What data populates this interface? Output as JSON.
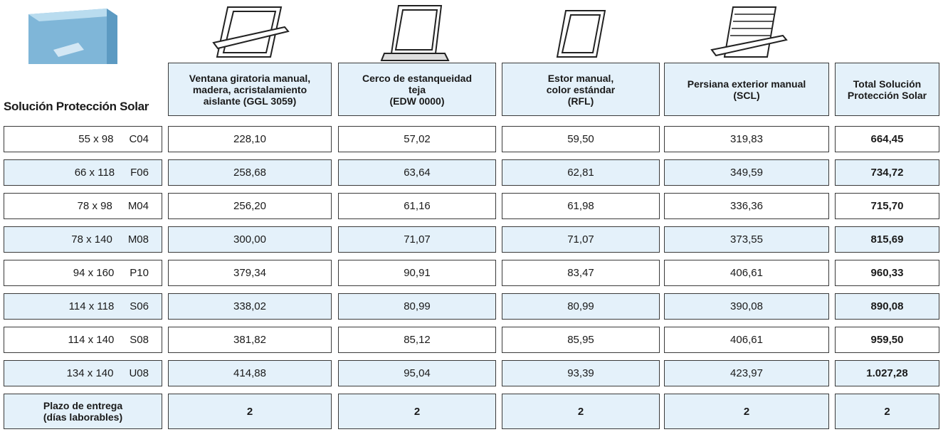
{
  "header": {
    "title": "Solución Protección Solar",
    "columns": [
      {
        "lines": [
          "Ventana giratoria manual,",
          "madera, acristalamiento",
          "aislante (GGL 3059)"
        ]
      },
      {
        "lines": [
          "Cerco de estanqueidad",
          "teja",
          "(EDW 0000)"
        ]
      },
      {
        "lines": [
          "Estor manual,",
          "color estándar",
          "(RFL)"
        ]
      },
      {
        "lines": [
          "Persiana exterior manual",
          "(SCL)"
        ]
      },
      {
        "lines": [
          "Total Solución",
          "Protección Solar"
        ]
      }
    ]
  },
  "table": {
    "rows": [
      {
        "size": "55 x 98",
        "code": "C04",
        "values": [
          "228,10",
          "57,02",
          "59,50",
          "319,83",
          "664,45"
        ]
      },
      {
        "size": "66 x 118",
        "code": "F06",
        "values": [
          "258,68",
          "63,64",
          "62,81",
          "349,59",
          "734,72"
        ]
      },
      {
        "size": "78 x 98",
        "code": "M04",
        "values": [
          "256,20",
          "61,16",
          "61,98",
          "336,36",
          "715,70"
        ]
      },
      {
        "size": "78 x 140",
        "code": "M08",
        "values": [
          "300,00",
          "71,07",
          "71,07",
          "373,55",
          "815,69"
        ]
      },
      {
        "size": "94 x 160",
        "code": "P10",
        "values": [
          "379,34",
          "90,91",
          "83,47",
          "406,61",
          "960,33"
        ]
      },
      {
        "size": "114 x 118",
        "code": "S06",
        "values": [
          "338,02",
          "80,99",
          "80,99",
          "390,08",
          "890,08"
        ]
      },
      {
        "size": "114 x 140",
        "code": "S08",
        "values": [
          "381,82",
          "85,12",
          "85,95",
          "406,61",
          "959,50"
        ]
      },
      {
        "size": "134 x 140",
        "code": "U08",
        "values": [
          "414,88",
          "95,04",
          "93,39",
          "423,97",
          "1.027,28"
        ]
      }
    ],
    "footer": {
      "lines": [
        "Plazo de entrega",
        "(días laborables)"
      ],
      "values": [
        "2",
        "2",
        "2",
        "2",
        "2"
      ]
    }
  }
}
